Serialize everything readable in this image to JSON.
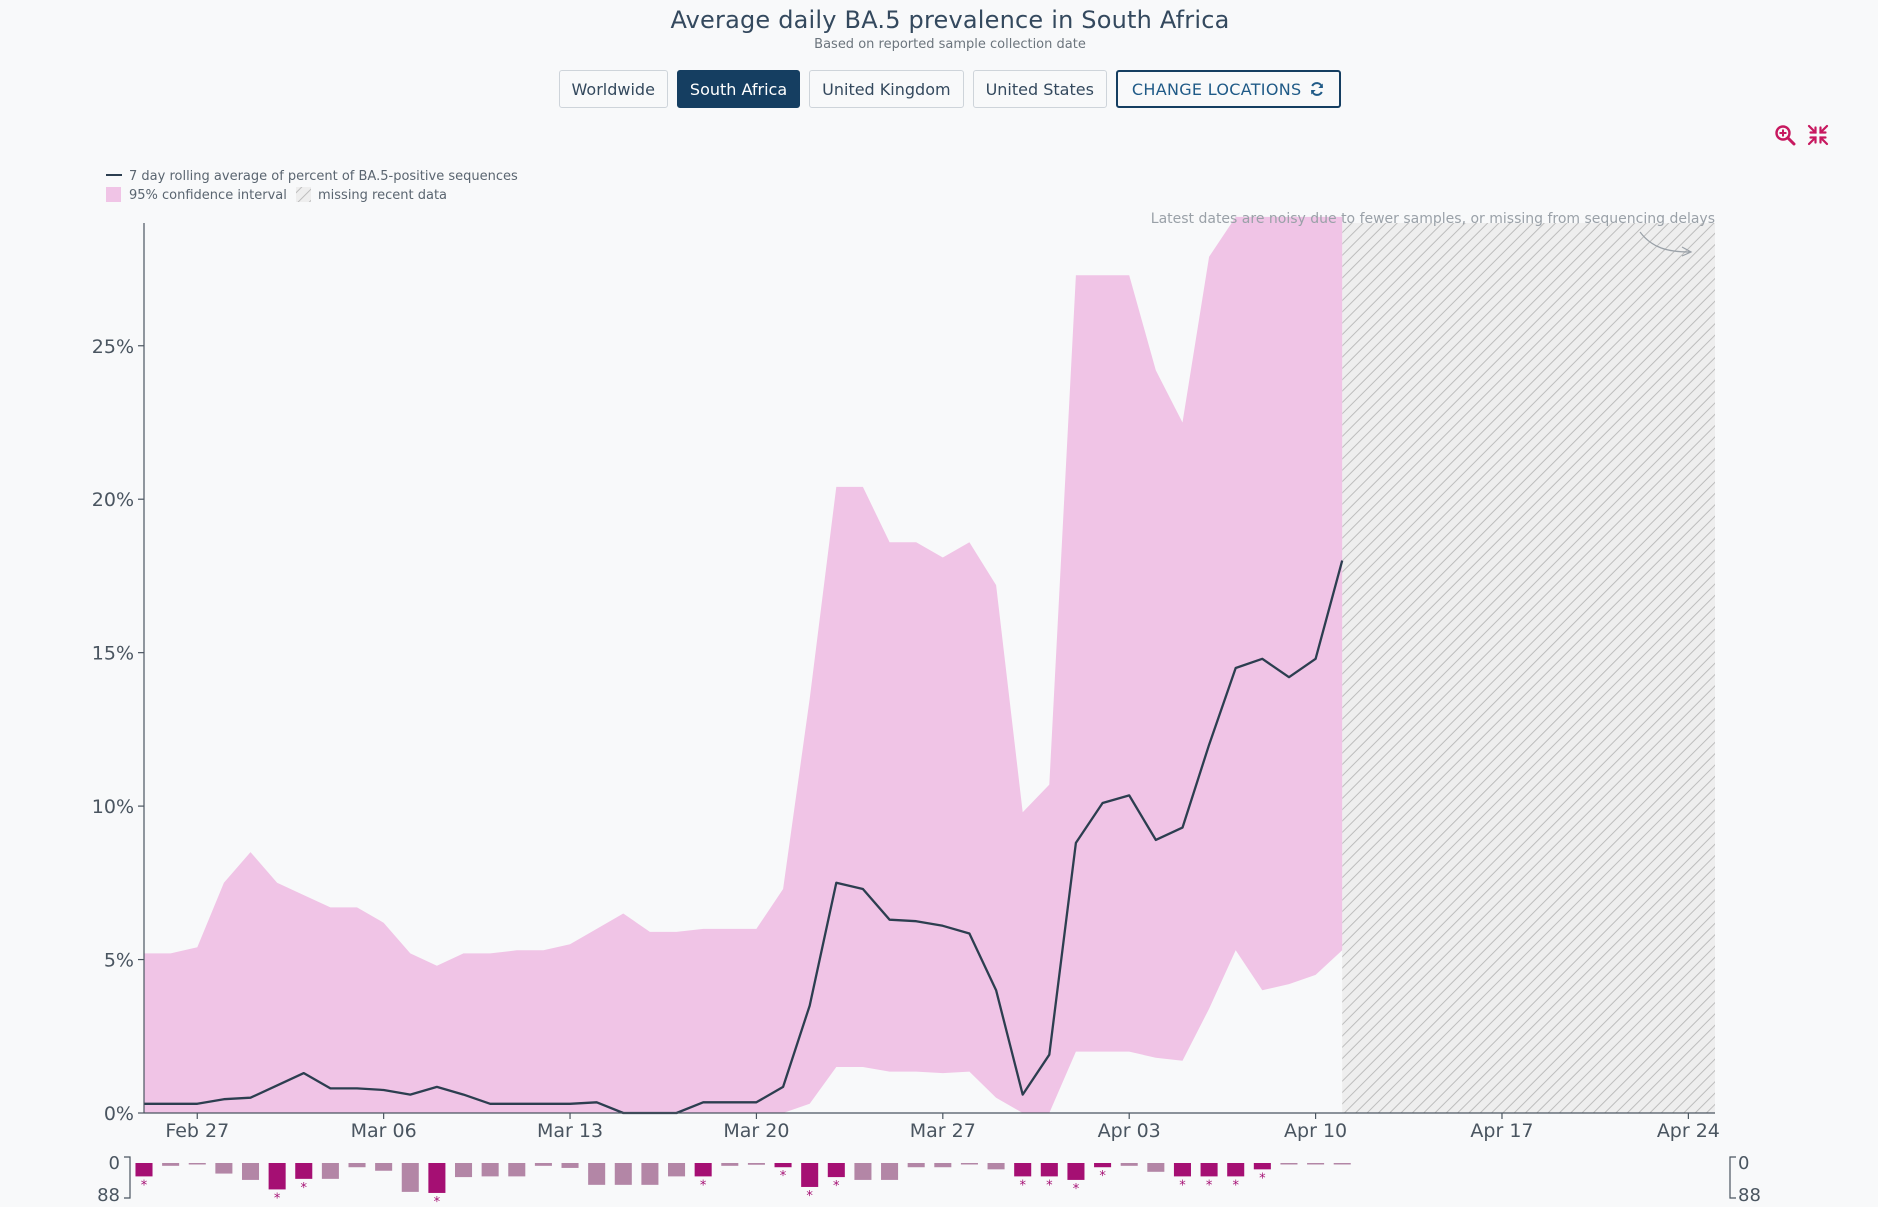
{
  "header": {
    "title": "Average daily BA.5 prevalence in South Africa",
    "subtitle": "Based on reported sample collection date"
  },
  "locations": {
    "buttons": [
      {
        "label": "Worldwide",
        "active": false
      },
      {
        "label": "South Africa",
        "active": true
      },
      {
        "label": "United Kingdom",
        "active": false
      },
      {
        "label": "United States",
        "active": false
      }
    ],
    "change_label": "CHANGE LOCATIONS"
  },
  "toolbar": {
    "zoom_icon": "zoom-in-icon",
    "reset_icon": "compress-icon"
  },
  "colors": {
    "line": "#2c3e50",
    "ci": "#f0c4e6",
    "bar_strong": "#a50f73",
    "bar_light": "#b386a6",
    "accent": "#153e61",
    "icon": "#c7185f"
  },
  "chart_data": {
    "type": "area",
    "legend": {
      "line": "7 day rolling average of percent of BA.5-positive sequences",
      "ci": "95% confidence interval",
      "missing": "missing recent data"
    },
    "note": "Latest dates are noisy due to fewer samples, or missing from sequencing delays",
    "y_ticks": [
      {
        "value": 0,
        "label": "0%"
      },
      {
        "value": 5,
        "label": "5%"
      },
      {
        "value": 10,
        "label": "10%"
      },
      {
        "value": 15,
        "label": "15%"
      },
      {
        "value": 20,
        "label": "20%"
      },
      {
        "value": 25,
        "label": "25%"
      }
    ],
    "ylim": [
      0,
      29
    ],
    "x_domain": [
      "2022-02-25",
      "2022-04-25"
    ],
    "x_ticks": [
      {
        "date": "2022-02-27",
        "label": "Feb 27"
      },
      {
        "date": "2022-03-06",
        "label": "Mar 06"
      },
      {
        "date": "2022-03-13",
        "label": "Mar 13"
      },
      {
        "date": "2022-03-20",
        "label": "Mar 20"
      },
      {
        "date": "2022-03-27",
        "label": "Mar 27"
      },
      {
        "date": "2022-04-03",
        "label": "Apr 03"
      },
      {
        "date": "2022-04-10",
        "label": "Apr 10"
      },
      {
        "date": "2022-04-17",
        "label": "Apr 17"
      },
      {
        "date": "2022-04-24",
        "label": "Apr 24"
      }
    ],
    "missing_from": "2022-04-11",
    "series": [
      {
        "date": "2022-02-25",
        "avg": 0.3,
        "lower": 0,
        "upper": 5.2
      },
      {
        "date": "2022-02-26",
        "avg": 0.3,
        "lower": 0,
        "upper": 5.2
      },
      {
        "date": "2022-02-27",
        "avg": 0.3,
        "lower": 0,
        "upper": 5.4
      },
      {
        "date": "2022-02-28",
        "avg": 0.45,
        "lower": 0,
        "upper": 7.5
      },
      {
        "date": "2022-03-01",
        "avg": 0.5,
        "lower": 0,
        "upper": 8.5
      },
      {
        "date": "2022-03-02",
        "avg": 0.9,
        "lower": 0,
        "upper": 7.5
      },
      {
        "date": "2022-03-03",
        "avg": 1.3,
        "lower": 0,
        "upper": 7.1
      },
      {
        "date": "2022-03-04",
        "avg": 0.8,
        "lower": 0,
        "upper": 6.7
      },
      {
        "date": "2022-03-05",
        "avg": 0.8,
        "lower": 0,
        "upper": 6.7
      },
      {
        "date": "2022-03-06",
        "avg": 0.75,
        "lower": 0,
        "upper": 6.2
      },
      {
        "date": "2022-03-07",
        "avg": 0.6,
        "lower": 0,
        "upper": 5.2
      },
      {
        "date": "2022-03-08",
        "avg": 0.85,
        "lower": 0,
        "upper": 4.8
      },
      {
        "date": "2022-03-09",
        "avg": 0.6,
        "lower": 0,
        "upper": 5.2
      },
      {
        "date": "2022-03-10",
        "avg": 0.3,
        "lower": 0,
        "upper": 5.2
      },
      {
        "date": "2022-03-11",
        "avg": 0.3,
        "lower": 0,
        "upper": 5.3
      },
      {
        "date": "2022-03-12",
        "avg": 0.3,
        "lower": 0,
        "upper": 5.3
      },
      {
        "date": "2022-03-13",
        "avg": 0.3,
        "lower": 0,
        "upper": 5.5
      },
      {
        "date": "2022-03-14",
        "avg": 0.35,
        "lower": 0,
        "upper": 6.0
      },
      {
        "date": "2022-03-15",
        "avg": 0.0,
        "lower": 0,
        "upper": 6.5
      },
      {
        "date": "2022-03-16",
        "avg": 0.0,
        "lower": 0,
        "upper": 5.9
      },
      {
        "date": "2022-03-17",
        "avg": 0.0,
        "lower": 0,
        "upper": 5.9
      },
      {
        "date": "2022-03-18",
        "avg": 0.35,
        "lower": 0,
        "upper": 6.0
      },
      {
        "date": "2022-03-19",
        "avg": 0.35,
        "lower": 0,
        "upper": 6.0
      },
      {
        "date": "2022-03-20",
        "avg": 0.35,
        "lower": 0,
        "upper": 6.0
      },
      {
        "date": "2022-03-21",
        "avg": 0.85,
        "lower": 0,
        "upper": 7.3
      },
      {
        "date": "2022-03-22",
        "avg": 3.5,
        "lower": 0.3,
        "upper": 13.5
      },
      {
        "date": "2022-03-23",
        "avg": 7.5,
        "lower": 1.5,
        "upper": 20.4
      },
      {
        "date": "2022-03-24",
        "avg": 7.3,
        "lower": 1.5,
        "upper": 20.4
      },
      {
        "date": "2022-03-25",
        "avg": 6.3,
        "lower": 1.35,
        "upper": 18.6
      },
      {
        "date": "2022-03-26",
        "avg": 6.25,
        "lower": 1.35,
        "upper": 18.6
      },
      {
        "date": "2022-03-27",
        "avg": 6.1,
        "lower": 1.3,
        "upper": 18.1
      },
      {
        "date": "2022-03-28",
        "avg": 5.85,
        "lower": 1.35,
        "upper": 18.6
      },
      {
        "date": "2022-03-29",
        "avg": 4.0,
        "lower": 0.5,
        "upper": 17.2
      },
      {
        "date": "2022-03-30",
        "avg": 0.6,
        "lower": 0,
        "upper": 9.8
      },
      {
        "date": "2022-03-31",
        "avg": 1.9,
        "lower": 0,
        "upper": 10.7
      },
      {
        "date": "2022-04-01",
        "avg": 8.8,
        "lower": 2.0,
        "upper": 27.3
      },
      {
        "date": "2022-04-02",
        "avg": 10.1,
        "lower": 2.0,
        "upper": 27.3
      },
      {
        "date": "2022-04-03",
        "avg": 10.35,
        "lower": 2.0,
        "upper": 27.3
      },
      {
        "date": "2022-04-04",
        "avg": 8.9,
        "lower": 1.8,
        "upper": 24.2
      },
      {
        "date": "2022-04-05",
        "avg": 9.3,
        "lower": 1.7,
        "upper": 22.5
      },
      {
        "date": "2022-04-06",
        "avg": 12.0,
        "lower": 3.4,
        "upper": 27.9
      },
      {
        "date": "2022-04-07",
        "avg": 14.5,
        "lower": 5.3,
        "upper": 29.2
      },
      {
        "date": "2022-04-08",
        "avg": 14.8,
        "lower": 4.0,
        "upper": 29.2
      },
      {
        "date": "2022-04-09",
        "avg": 14.2,
        "lower": 4.2,
        "upper": 29.2
      },
      {
        "date": "2022-04-10",
        "avg": 14.8,
        "lower": 4.5,
        "upper": 29.2
      },
      {
        "date": "2022-04-11",
        "avg": 18.0,
        "lower": 5.3,
        "upper": 29.2
      }
    ],
    "sequence_counts": {
      "axis_labels": {
        "top": "0",
        "bottom": "88"
      },
      "max": 88,
      "bars": [
        {
          "date": "2022-02-25",
          "value": 38,
          "flag": true
        },
        {
          "date": "2022-02-26",
          "value": 8,
          "flag": false
        },
        {
          "date": "2022-02-27",
          "value": 3,
          "flag": false
        },
        {
          "date": "2022-02-28",
          "value": 30,
          "flag": false
        },
        {
          "date": "2022-03-01",
          "value": 48,
          "flag": false
        },
        {
          "date": "2022-03-02",
          "value": 75,
          "flag": true
        },
        {
          "date": "2022-03-03",
          "value": 45,
          "flag": true
        },
        {
          "date": "2022-03-04",
          "value": 45,
          "flag": false
        },
        {
          "date": "2022-03-05",
          "value": 12,
          "flag": false
        },
        {
          "date": "2022-03-06",
          "value": 22,
          "flag": false
        },
        {
          "date": "2022-03-07",
          "value": 82,
          "flag": false
        },
        {
          "date": "2022-03-08",
          "value": 85,
          "flag": true
        },
        {
          "date": "2022-03-09",
          "value": 40,
          "flag": false
        },
        {
          "date": "2022-03-10",
          "value": 38,
          "flag": false
        },
        {
          "date": "2022-03-11",
          "value": 38,
          "flag": false
        },
        {
          "date": "2022-03-12",
          "value": 8,
          "flag": false
        },
        {
          "date": "2022-03-13",
          "value": 14,
          "flag": false
        },
        {
          "date": "2022-03-14",
          "value": 62,
          "flag": false
        },
        {
          "date": "2022-03-15",
          "value": 62,
          "flag": false
        },
        {
          "date": "2022-03-16",
          "value": 62,
          "flag": false
        },
        {
          "date": "2022-03-17",
          "value": 38,
          "flag": false
        },
        {
          "date": "2022-03-18",
          "value": 38,
          "flag": true
        },
        {
          "date": "2022-03-19",
          "value": 8,
          "flag": false
        },
        {
          "date": "2022-03-20",
          "value": 5,
          "flag": false
        },
        {
          "date": "2022-03-21",
          "value": 12,
          "flag": true
        },
        {
          "date": "2022-03-22",
          "value": 68,
          "flag": true
        },
        {
          "date": "2022-03-23",
          "value": 40,
          "flag": true
        },
        {
          "date": "2022-03-24",
          "value": 48,
          "flag": false
        },
        {
          "date": "2022-03-25",
          "value": 48,
          "flag": false
        },
        {
          "date": "2022-03-26",
          "value": 12,
          "flag": false
        },
        {
          "date": "2022-03-27",
          "value": 12,
          "flag": false
        },
        {
          "date": "2022-03-28",
          "value": 2,
          "flag": false
        },
        {
          "date": "2022-03-29",
          "value": 18,
          "flag": false
        },
        {
          "date": "2022-03-30",
          "value": 38,
          "flag": true
        },
        {
          "date": "2022-03-31",
          "value": 38,
          "flag": true
        },
        {
          "date": "2022-04-01",
          "value": 48,
          "flag": true
        },
        {
          "date": "2022-04-02",
          "value": 12,
          "flag": true
        },
        {
          "date": "2022-04-03",
          "value": 8,
          "flag": false
        },
        {
          "date": "2022-04-04",
          "value": 25,
          "flag": false
        },
        {
          "date": "2022-04-05",
          "value": 38,
          "flag": true
        },
        {
          "date": "2022-04-06",
          "value": 38,
          "flag": true
        },
        {
          "date": "2022-04-07",
          "value": 38,
          "flag": true
        },
        {
          "date": "2022-04-08",
          "value": 18,
          "flag": true
        },
        {
          "date": "2022-04-09",
          "value": 3,
          "flag": false
        },
        {
          "date": "2022-04-10",
          "value": 3,
          "flag": false
        },
        {
          "date": "2022-04-11",
          "value": 2,
          "flag": false
        }
      ]
    }
  }
}
